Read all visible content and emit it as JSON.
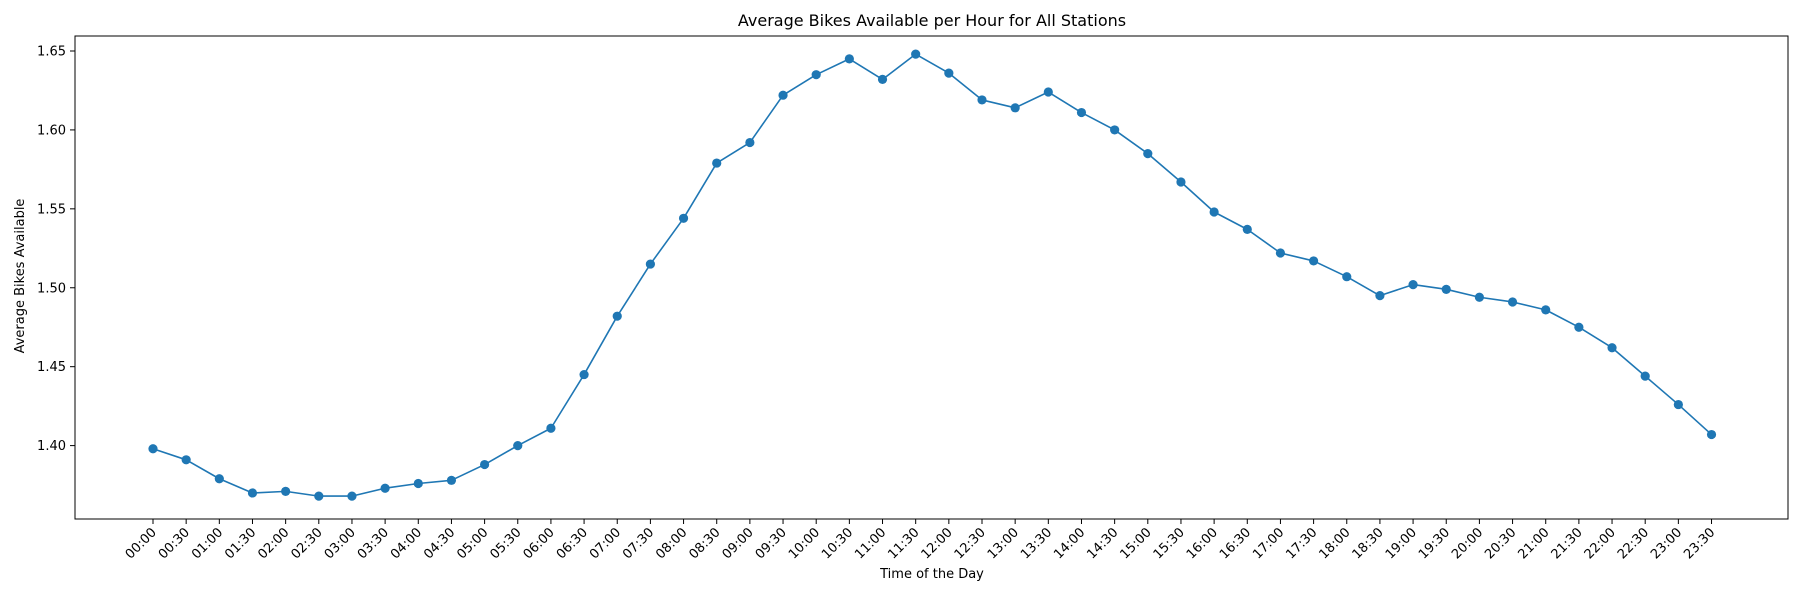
{
  "chart_data": {
    "type": "line",
    "title": "Average Bikes Available per Hour for All Stations",
    "xlabel": "Time of the Day",
    "ylabel": "Average Bikes Available",
    "categories": [
      "00:00",
      "00:30",
      "01:00",
      "01:30",
      "02:00",
      "02:30",
      "03:00",
      "03:30",
      "04:00",
      "04:30",
      "05:00",
      "05:30",
      "06:00",
      "06:30",
      "07:00",
      "07:30",
      "08:00",
      "08:30",
      "09:00",
      "09:30",
      "10:00",
      "10:30",
      "11:00",
      "11:30",
      "12:00",
      "12:30",
      "13:00",
      "13:30",
      "14:00",
      "14:30",
      "15:00",
      "15:30",
      "16:00",
      "16:30",
      "17:00",
      "17:30",
      "18:00",
      "18:30",
      "19:00",
      "19:30",
      "20:00",
      "20:30",
      "21:00",
      "21:30",
      "22:00",
      "22:30",
      "23:00",
      "23:30"
    ],
    "series": [
      {
        "values": [
          1.398,
          1.391,
          1.379,
          1.37,
          1.371,
          1.368,
          1.368,
          1.373,
          1.376,
          1.378,
          1.388,
          1.4,
          1.411,
          1.445,
          1.482,
          1.515,
          1.544,
          1.579,
          1.592,
          1.622,
          1.635,
          1.645,
          1.632,
          1.648,
          1.636,
          1.619,
          1.614,
          1.624,
          1.611,
          1.6,
          1.585,
          1.567,
          1.548,
          1.537,
          1.522,
          1.517,
          1.507,
          1.495,
          1.502,
          1.499,
          1.494,
          1.491,
          1.486,
          1.475,
          1.462,
          1.444,
          1.426,
          1.407
        ]
      }
    ],
    "ylim": [
      1.3535,
      1.6595
    ],
    "yticks": [
      "1.40",
      "1.45",
      "1.50",
      "1.55",
      "1.60",
      "1.65"
    ],
    "grid": false,
    "legend": "none",
    "colors": {
      "line": "#1f77b4",
      "marker": "#1f77b4",
      "axes": "#000000"
    }
  }
}
